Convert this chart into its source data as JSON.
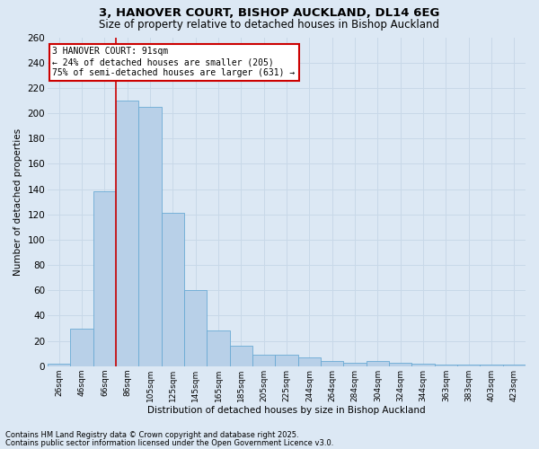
{
  "title": "3, HANOVER COURT, BISHOP AUCKLAND, DL14 6EG",
  "subtitle": "Size of property relative to detached houses in Bishop Auckland",
  "xlabel": "Distribution of detached houses by size in Bishop Auckland",
  "ylabel": "Number of detached properties",
  "footnote1": "Contains HM Land Registry data © Crown copyright and database right 2025.",
  "footnote2": "Contains public sector information licensed under the Open Government Licence v3.0.",
  "bin_labels": [
    "26sqm",
    "46sqm",
    "66sqm",
    "86sqm",
    "105sqm",
    "125sqm",
    "145sqm",
    "165sqm",
    "185sqm",
    "205sqm",
    "225sqm",
    "244sqm",
    "264sqm",
    "284sqm",
    "304sqm",
    "324sqm",
    "344sqm",
    "363sqm",
    "383sqm",
    "403sqm",
    "423sqm"
  ],
  "bar_values": [
    2,
    30,
    138,
    210,
    205,
    121,
    60,
    28,
    16,
    9,
    9,
    7,
    4,
    3,
    4,
    3,
    2,
    1,
    1,
    1,
    1
  ],
  "bar_color": "#b8d0e8",
  "bar_edge_color": "#6aaad4",
  "grid_color": "#c8d8e8",
  "background_color": "#dce8f4",
  "vline_color": "#cc0000",
  "vline_x_index": 3,
  "annotation_text": "3 HANOVER COURT: 91sqm\n← 24% of detached houses are smaller (205)\n75% of semi-detached houses are larger (631) →",
  "annotation_box_color": "#ffffff",
  "annotation_box_edge": "#cc0000",
  "ylim": [
    0,
    260
  ],
  "yticks": [
    0,
    20,
    40,
    60,
    80,
    100,
    120,
    140,
    160,
    180,
    200,
    220,
    240,
    260
  ]
}
